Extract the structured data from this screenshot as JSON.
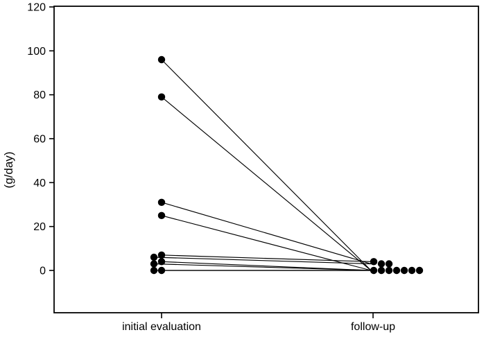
{
  "chart_data": {
    "type": "line",
    "subtype": "paired-before-after-slopegraph",
    "title": "",
    "ylabel": "(g/day)",
    "xlabel": "",
    "categories": [
      "initial evaluation",
      "follow-up"
    ],
    "y_ticks": [
      0,
      20,
      40,
      60,
      80,
      100,
      120
    ],
    "ylim": [
      -19,
      120
    ],
    "grid": false,
    "legend": "none",
    "marker": {
      "shape": "circle",
      "color": "#000000",
      "radius_px": 5.2
    },
    "colors": {
      "axis": "#000000",
      "line": "#000000",
      "background": "#ffffff"
    },
    "pairs": [
      {
        "initial": 96,
        "followup": 0,
        "init_col": 0,
        "follow_col": 0
      },
      {
        "initial": 79,
        "followup": 0,
        "init_col": 0,
        "follow_col": 1
      },
      {
        "initial": 31,
        "followup": 3,
        "init_col": 0,
        "follow_col": 1
      },
      {
        "initial": 25,
        "followup": 0,
        "init_col": 0,
        "follow_col": 2
      },
      {
        "initial": 7,
        "followup": 4,
        "init_col": 0,
        "follow_col": 0
      },
      {
        "initial": 6,
        "followup": 3,
        "init_col": -1,
        "follow_col": 2
      },
      {
        "initial": 4,
        "followup": 0,
        "init_col": 0,
        "follow_col": 3
      },
      {
        "initial": 3,
        "followup": 0,
        "init_col": -1,
        "follow_col": 4
      },
      {
        "initial": 0,
        "followup": 0,
        "init_col": 0,
        "follow_col": 5
      },
      {
        "initial": 0,
        "followup": 0,
        "init_col": -1,
        "follow_col": 6
      }
    ],
    "series_note": "Each pair is one subject: value at initial evaluation connected by a line to value at follow-up. Overlapping points are horizontally jittered (col * 11px)."
  }
}
